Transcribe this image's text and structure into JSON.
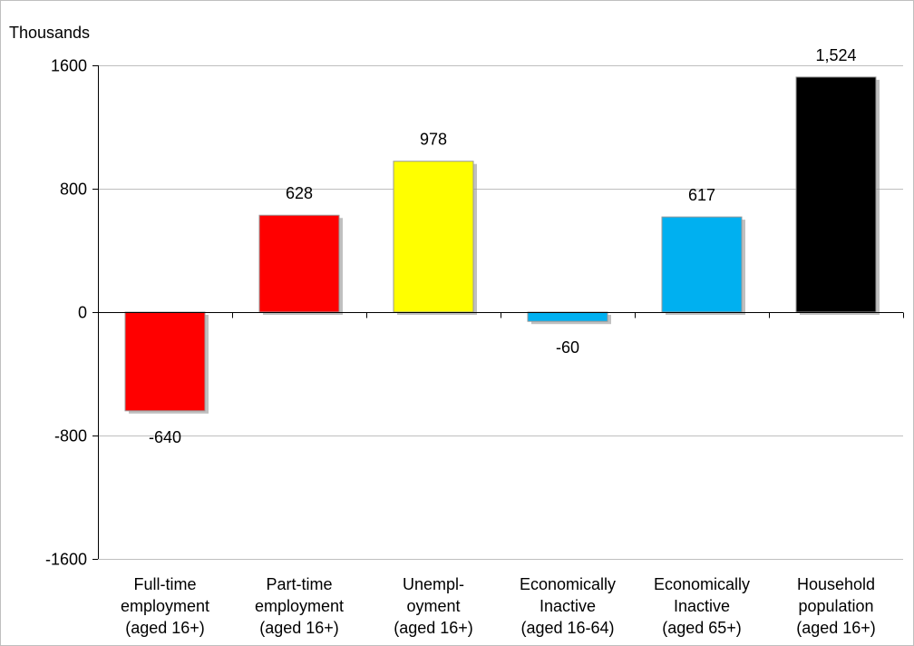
{
  "chart_data": {
    "type": "bar",
    "unit_label": "Thousands",
    "categories": [
      [
        "Full-time",
        "employment",
        "(aged 16+)"
      ],
      [
        "Part-time",
        "employment",
        "(aged 16+)"
      ],
      [
        "Unempl-",
        "oyment",
        "(aged 16+)"
      ],
      [
        "Economically",
        "Inactive",
        "(aged 16-64)"
      ],
      [
        "Economically",
        "Inactive",
        "(aged 65+)"
      ],
      [
        "Household",
        "population",
        "(aged 16+)"
      ]
    ],
    "values": [
      -640,
      628,
      978,
      -60,
      617,
      1524
    ],
    "data_labels": [
      "-640",
      "628",
      "978",
      "-60",
      "617",
      "1,524"
    ],
    "bar_colors": [
      "#ff0000",
      "#ff0000",
      "#ffff00",
      "#00b0f0",
      "#00b0f0",
      "#000000"
    ],
    "ylim": [
      -1600,
      1600
    ],
    "yticks": [
      1600,
      800,
      0,
      -800,
      -1600
    ],
    "ytick_labels": [
      "1600",
      "800",
      "0",
      "-800",
      "-1600"
    ],
    "grid": true,
    "legend": "none"
  }
}
